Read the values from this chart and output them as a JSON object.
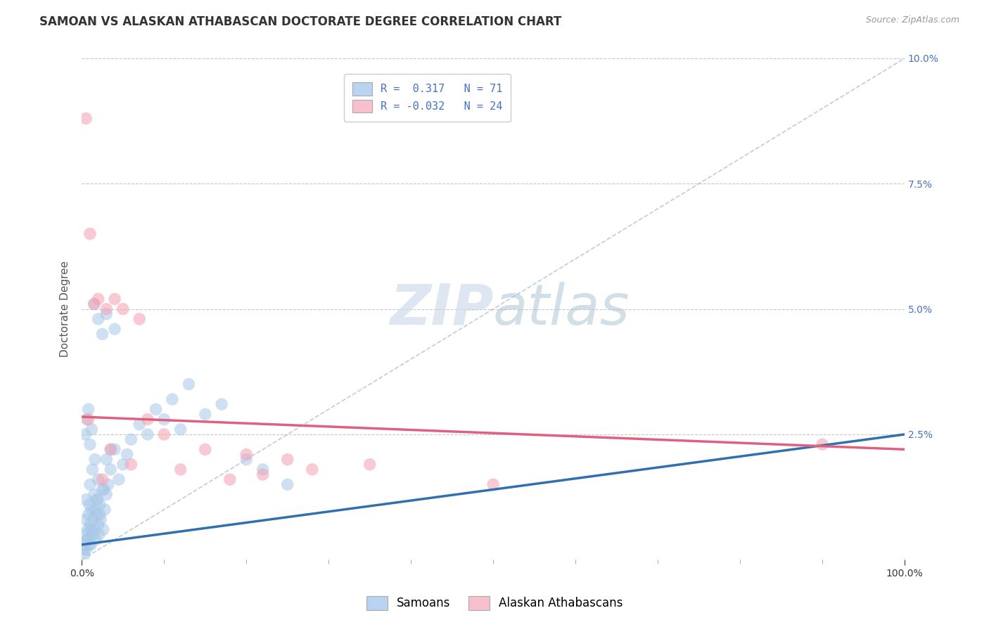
{
  "title": "SAMOAN VS ALASKAN ATHABASCAN DOCTORATE DEGREE CORRELATION CHART",
  "source_text": "Source: ZipAtlas.com",
  "ylabel": "Doctorate Degree",
  "legend_label1": "Samoans",
  "legend_label2": "Alaskan Athabascans",
  "r1": 0.317,
  "n1": 71,
  "r2": -0.032,
  "n2": 24,
  "color1": "#a8c8e8",
  "color2": "#f4a0b0",
  "trendline1_color": "#3070b0",
  "trendline2_color": "#e06080",
  "watermark_zip": "ZIP",
  "watermark_atlas": "atlas",
  "background_color": "#ffffff",
  "xlim": [
    0,
    100
  ],
  "ylim": [
    0,
    10
  ],
  "y_ticks": [
    0,
    2.5,
    5.0,
    7.5,
    10.0
  ],
  "y_tick_labels_right": [
    "",
    "2.5%",
    "5.0%",
    "7.5%",
    "10.0%"
  ],
  "samoans_x": [
    0.2,
    0.3,
    0.4,
    0.5,
    0.5,
    0.6,
    0.7,
    0.8,
    0.9,
    1.0,
    1.0,
    1.1,
    1.2,
    1.3,
    1.4,
    1.5,
    1.5,
    1.6,
    1.7,
    1.8,
    1.9,
    2.0,
    2.0,
    2.1,
    2.2,
    2.3,
    2.5,
    2.6,
    2.8,
    3.0,
    3.0,
    3.2,
    3.5,
    4.0,
    4.5,
    5.0,
    5.5,
    6.0,
    7.0,
    8.0,
    9.0,
    10.0,
    11.0,
    12.0,
    13.0,
    15.0,
    17.0,
    20.0,
    22.0,
    25.0,
    0.4,
    0.6,
    0.8,
    1.0,
    1.2,
    1.5,
    2.0,
    2.5,
    3.0,
    4.0,
    0.3,
    0.5,
    0.7,
    0.9,
    1.1,
    1.3,
    1.6,
    1.8,
    2.2,
    2.7,
    3.5
  ],
  "samoans_y": [
    0.2,
    0.5,
    0.3,
    0.8,
    1.2,
    0.4,
    0.6,
    0.9,
    1.1,
    0.7,
    1.5,
    0.3,
    1.0,
    0.5,
    0.8,
    1.3,
    0.6,
    1.0,
    0.4,
    0.9,
    1.2,
    0.7,
    1.6,
    0.5,
    1.1,
    0.8,
    1.4,
    0.6,
    1.0,
    1.3,
    2.0,
    1.5,
    1.8,
    2.2,
    1.6,
    1.9,
    2.1,
    2.4,
    2.7,
    2.5,
    3.0,
    2.8,
    3.2,
    2.6,
    3.5,
    2.9,
    3.1,
    2.0,
    1.8,
    1.5,
    2.5,
    2.8,
    3.0,
    2.3,
    2.6,
    5.1,
    4.8,
    4.5,
    4.9,
    4.6,
    0.1,
    0.2,
    0.4,
    0.3,
    0.6,
    1.8,
    2.0,
    1.2,
    0.9,
    1.4,
    2.2
  ],
  "athabascans_x": [
    0.5,
    1.0,
    2.0,
    3.0,
    4.0,
    5.0,
    7.0,
    8.0,
    10.0,
    12.0,
    15.0,
    18.0,
    20.0,
    25.0,
    28.0,
    35.0,
    50.0,
    90.0,
    1.5,
    3.5,
    6.0,
    22.0,
    0.8,
    2.5
  ],
  "athabascans_y": [
    8.8,
    6.5,
    5.2,
    5.0,
    5.2,
    5.0,
    4.8,
    2.8,
    2.5,
    1.8,
    2.2,
    1.6,
    2.1,
    2.0,
    1.8,
    1.9,
    1.5,
    2.3,
    5.1,
    2.2,
    1.9,
    1.7,
    2.8,
    1.6
  ],
  "trendline1_x0": 0,
  "trendline1_y0": 0.3,
  "trendline1_x1": 100,
  "trendline1_y1": 2.5,
  "trendline2_x0": 0,
  "trendline2_y0": 2.85,
  "trendline2_x1": 100,
  "trendline2_y1": 2.2
}
